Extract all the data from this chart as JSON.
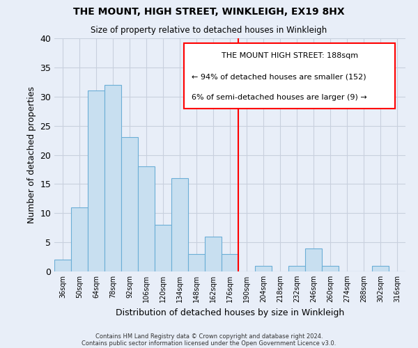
{
  "title": "THE MOUNT, HIGH STREET, WINKLEIGH, EX19 8HX",
  "subtitle": "Size of property relative to detached houses in Winkleigh",
  "xlabel": "Distribution of detached houses by size in Winkleigh",
  "ylabel": "Number of detached properties",
  "bin_labels": [
    "36sqm",
    "50sqm",
    "64sqm",
    "78sqm",
    "92sqm",
    "106sqm",
    "120sqm",
    "134sqm",
    "148sqm",
    "162sqm",
    "176sqm",
    "190sqm",
    "204sqm",
    "218sqm",
    "232sqm",
    "246sqm",
    "260sqm",
    "274sqm",
    "288sqm",
    "302sqm",
    "316sqm"
  ],
  "bar_heights": [
    2,
    11,
    31,
    32,
    23,
    18,
    8,
    16,
    3,
    6,
    3,
    0,
    1,
    0,
    1,
    4,
    1,
    0,
    0,
    1,
    0
  ],
  "bar_color": "#c8dff0",
  "bar_edge_color": "#6baed6",
  "vline_index": 11,
  "vline_color": "red",
  "ylim": [
    0,
    40
  ],
  "yticks": [
    0,
    5,
    10,
    15,
    20,
    25,
    30,
    35,
    40
  ],
  "annotation_title": "THE MOUNT HIGH STREET: 188sqm",
  "annotation_line1": "← 94% of detached houses are smaller (152)",
  "annotation_line2": "6% of semi-detached houses are larger (9) →",
  "footer_line1": "Contains HM Land Registry data © Crown copyright and database right 2024.",
  "footer_line2": "Contains public sector information licensed under the Open Government Licence v3.0.",
  "bg_color": "#e8eef8",
  "grid_color": "#c8d0de"
}
